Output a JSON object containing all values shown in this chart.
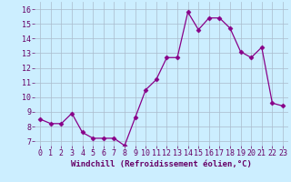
{
  "x": [
    0,
    1,
    2,
    3,
    4,
    5,
    6,
    7,
    8,
    9,
    10,
    11,
    12,
    13,
    14,
    15,
    16,
    17,
    18,
    19,
    20,
    21,
    22,
    23
  ],
  "y": [
    8.5,
    8.2,
    8.2,
    8.9,
    7.6,
    7.2,
    7.2,
    7.2,
    6.7,
    8.6,
    10.5,
    11.2,
    12.7,
    12.7,
    15.8,
    14.6,
    15.4,
    15.4,
    14.7,
    13.1,
    12.7,
    13.4,
    9.6,
    9.4
  ],
  "line_color": "#880088",
  "marker": "D",
  "marker_size": 2.5,
  "bg_color": "#cceeff",
  "grid_color": "#aabbcc",
  "xlabel": "Windchill (Refroidissement éolien,°C)",
  "ylabel_ticks": [
    7,
    8,
    9,
    10,
    11,
    12,
    13,
    14,
    15,
    16
  ],
  "xlim": [
    -0.5,
    23.5
  ],
  "ylim": [
    6.7,
    16.5
  ],
  "xlabel_fontsize": 6.5,
  "tick_fontsize": 6.0
}
